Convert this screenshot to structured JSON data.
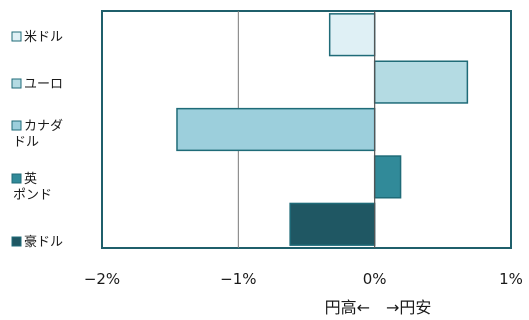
{
  "chart_data": {
    "type": "bar",
    "orientation": "horizontal",
    "title": "",
    "xlabel": "円高←　→円安",
    "ylabel": "",
    "xlim": [
      -2,
      1
    ],
    "x_ticks": [
      -2,
      -1,
      0,
      1
    ],
    "x_tick_labels": [
      "−2%",
      "−1%",
      "0%",
      "1%"
    ],
    "grid": "vertical",
    "legend_placement": "left",
    "categories": [
      "米ドル",
      "ユーロ",
      "カナダドル",
      "英ポンド",
      "豪ドル"
    ],
    "values": [
      -0.33,
      0.68,
      -1.45,
      0.19,
      -0.62
    ],
    "legend": [
      {
        "lines": [
          "米ドル"
        ],
        "color": "#dff0f5"
      },
      {
        "lines": [
          "ユーロ"
        ],
        "color": "#b4dbe3"
      },
      {
        "lines": [
          "カナダ",
          "ドル"
        ],
        "color": "#9ccfdc"
      },
      {
        "lines": [
          "英",
          "ポンド"
        ],
        "color": "#318a99"
      },
      {
        "lines": [
          "豪ドル"
        ],
        "color": "#1f5763"
      }
    ],
    "colors": {
      "frame": "#1f5f6b",
      "bar_edge": "#1f6b78",
      "gridline": "#7a7a7a",
      "zero_line": "#555555"
    }
  }
}
